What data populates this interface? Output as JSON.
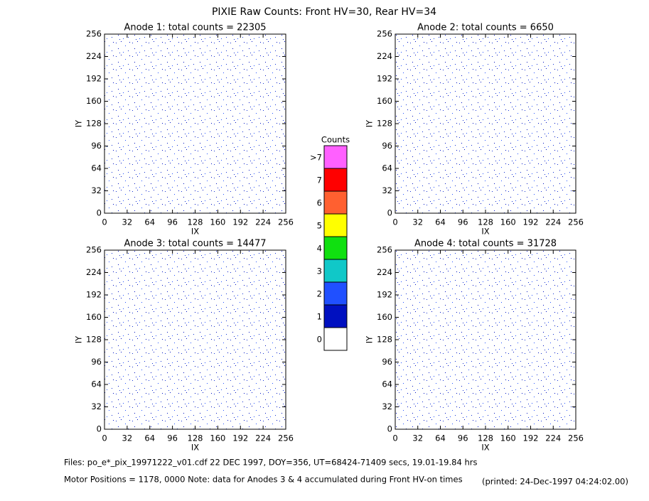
{
  "title": "PIXIE Raw Counts:  Front HV=30, Rear HV=34",
  "chart_data": [
    {
      "type": "heatmap",
      "title": "Anode 1: total counts = 22305",
      "x_label": "IX",
      "y_label": "IY",
      "xlim": [
        0,
        256
      ],
      "ylim": [
        0,
        256
      ],
      "xticks": [
        0,
        32,
        64,
        96,
        128,
        160,
        192,
        224,
        256
      ],
      "yticks": [
        0,
        32,
        64,
        96,
        128,
        160,
        192,
        224,
        256
      ]
    },
    {
      "type": "heatmap",
      "title": "Anode 2: total counts = 6650",
      "x_label": "IX",
      "y_label": "IY",
      "xlim": [
        0,
        256
      ],
      "ylim": [
        0,
        256
      ],
      "xticks": [
        0,
        32,
        64,
        96,
        128,
        160,
        192,
        224,
        256
      ],
      "yticks": [
        0,
        32,
        64,
        96,
        128,
        160,
        192,
        224,
        256
      ]
    },
    {
      "type": "heatmap",
      "title": "Anode 3: total counts = 14477",
      "x_label": "IX",
      "y_label": "IY",
      "xlim": [
        0,
        256
      ],
      "ylim": [
        0,
        256
      ],
      "xticks": [
        0,
        32,
        64,
        96,
        128,
        160,
        192,
        224,
        256
      ],
      "yticks": [
        0,
        32,
        64,
        96,
        128,
        160,
        192,
        224,
        256
      ]
    },
    {
      "type": "heatmap",
      "title": "Anode 4: total counts = 31728",
      "x_label": "IX",
      "y_label": "IY",
      "xlim": [
        0,
        256
      ],
      "ylim": [
        0,
        256
      ],
      "xticks": [
        0,
        32,
        64,
        96,
        128,
        160,
        192,
        224,
        256
      ],
      "yticks": [
        0,
        32,
        64,
        96,
        128,
        160,
        192,
        224,
        256
      ]
    }
  ],
  "colorbar": {
    "title": "Counts",
    "labels": [
      "0",
      "1",
      "2",
      "3",
      "4",
      "5",
      "6",
      "7",
      ">7"
    ],
    "colors": [
      "#ffffff",
      "#0010c0",
      "#2050ff",
      "#10c8c8",
      "#10e010",
      "#ffff00",
      "#ff6030",
      "#ff0000",
      "#ff60ff"
    ]
  },
  "footer": {
    "files": "Files: po_e*_pix_19971222_v01.cdf    22 DEC 1997, DOY=356, UT=68424-71409 secs, 19.01-19.84 hrs",
    "motor": "Motor Positions = 1178, 0000    Note: data for Anodes 3 & 4 accumulated during Front HV-on times",
    "printed": "(printed: 24-Dec-1997 04:24:02.00)"
  }
}
